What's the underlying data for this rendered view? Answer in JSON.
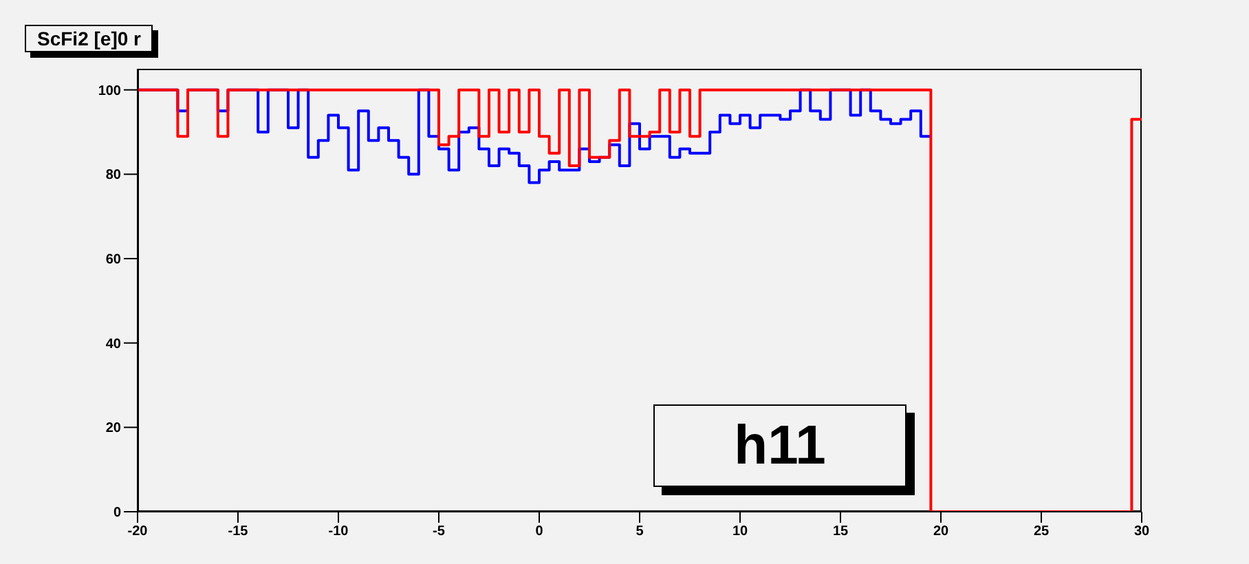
{
  "chart_data": {
    "type": "histogram",
    "title": "ScFi2 [e]0 r",
    "annotations": [
      "h11"
    ],
    "bins": [
      -20,
      -19.5,
      -19,
      -18.5,
      -18,
      -17.5,
      -17,
      -16.5,
      -16,
      -15.5,
      -15,
      -14.5,
      -14,
      -13.5,
      -13,
      -12.5,
      -12,
      -11.5,
      -11,
      -10.5,
      -10,
      -9.5,
      -9,
      -8.5,
      -8,
      -7.5,
      -7,
      -6.5,
      -6,
      -5.5,
      -5,
      -4.5,
      -4,
      -3.5,
      -3,
      -2.5,
      -2,
      -1.5,
      -1,
      -0.5,
      0,
      0.5,
      1,
      1.5,
      2,
      2.5,
      3,
      3.5,
      4,
      4.5,
      5,
      5.5,
      6,
      6.5,
      7,
      7.5,
      8,
      8.5,
      9,
      9.5,
      10,
      10.5,
      11,
      11.5,
      12,
      12.5,
      13,
      13.5,
      14,
      14.5,
      15,
      15.5,
      16,
      16.5,
      17,
      17.5,
      18,
      18.5,
      19,
      19.5,
      20,
      20.5,
      21,
      21.5,
      22,
      22.5,
      23,
      23.5,
      24,
      24.5,
      25,
      25.5,
      26,
      26.5,
      27,
      27.5,
      28,
      28.5,
      29,
      29.5,
      30
    ],
    "series": [
      {
        "color": "#0000ff",
        "bins": [
          -20,
          -19.5,
          -19,
          -18.5,
          -18,
          -17.5,
          -17,
          -16.5,
          -16,
          -15.5,
          -15,
          -14.5,
          -14,
          -13.5,
          -13,
          -12.5,
          -12,
          -11.5,
          -11,
          -10.5,
          -10,
          -9.5,
          -9,
          -8.5,
          -8,
          -7.5,
          -7,
          -6.5,
          -6,
          -5.5,
          -5,
          -4.5,
          -4,
          -3.5,
          -3,
          -2.5,
          -2,
          -1.5,
          -1,
          -0.5,
          0,
          0.5,
          1,
          1.5,
          2,
          2.5,
          3,
          3.5,
          4,
          4.5,
          5,
          5.5,
          6,
          6.5,
          7,
          7.5,
          8,
          8.5,
          9,
          9.5,
          10,
          10.5,
          11,
          11.5,
          12,
          12.5,
          13,
          13.5,
          14,
          14.5,
          15,
          15.5,
          16,
          16.5,
          17,
          17.5,
          18,
          18.5,
          19,
          19.5
        ],
        "values": [
          100,
          100,
          100,
          100,
          95,
          100,
          100,
          100,
          95,
          100,
          100,
          100,
          90,
          100,
          100,
          91,
          100,
          84,
          88,
          94,
          91,
          81,
          95,
          88,
          91,
          88,
          84,
          80,
          100,
          89,
          86,
          81,
          90,
          91,
          86,
          82,
          86,
          85,
          82,
          78,
          81,
          83,
          81,
          81,
          86,
          83,
          84,
          87,
          82,
          92,
          86,
          89,
          89,
          84,
          86,
          85,
          85,
          90,
          94,
          92,
          94,
          91,
          94,
          94,
          93,
          95,
          100,
          95,
          93,
          100,
          100,
          94,
          100,
          95,
          93,
          92,
          93,
          95,
          89
        ]
      },
      {
        "color": "#ff0000",
        "values": [
          100,
          100,
          100,
          100,
          89,
          100,
          100,
          100,
          89,
          100,
          100,
          100,
          100,
          100,
          100,
          100,
          100,
          100,
          100,
          100,
          100,
          100,
          100,
          100,
          100,
          100,
          100,
          100,
          100,
          100,
          87,
          89,
          100,
          100,
          89,
          100,
          90,
          100,
          90,
          100,
          89,
          85,
          100,
          82,
          100,
          84,
          84,
          88,
          100,
          89,
          89,
          90,
          100,
          90,
          100,
          89,
          100,
          100,
          100,
          100,
          100,
          100,
          100,
          100,
          100,
          100,
          100,
          100,
          100,
          100,
          100,
          100,
          100,
          100,
          100,
          100,
          100,
          100,
          100,
          0,
          0,
          0,
          0,
          0,
          0,
          0,
          0,
          0,
          0,
          0,
          0,
          0,
          0,
          0,
          0,
          0,
          0,
          0,
          0,
          93
        ]
      }
    ],
    "xlim": [
      -20,
      30
    ],
    "xticks": [
      -20,
      -15,
      -10,
      -5,
      0,
      5,
      10,
      15,
      20,
      25,
      30
    ],
    "ylim": [
      0,
      105
    ],
    "yticks": [
      0,
      20,
      40,
      60,
      80,
      100
    ]
  }
}
